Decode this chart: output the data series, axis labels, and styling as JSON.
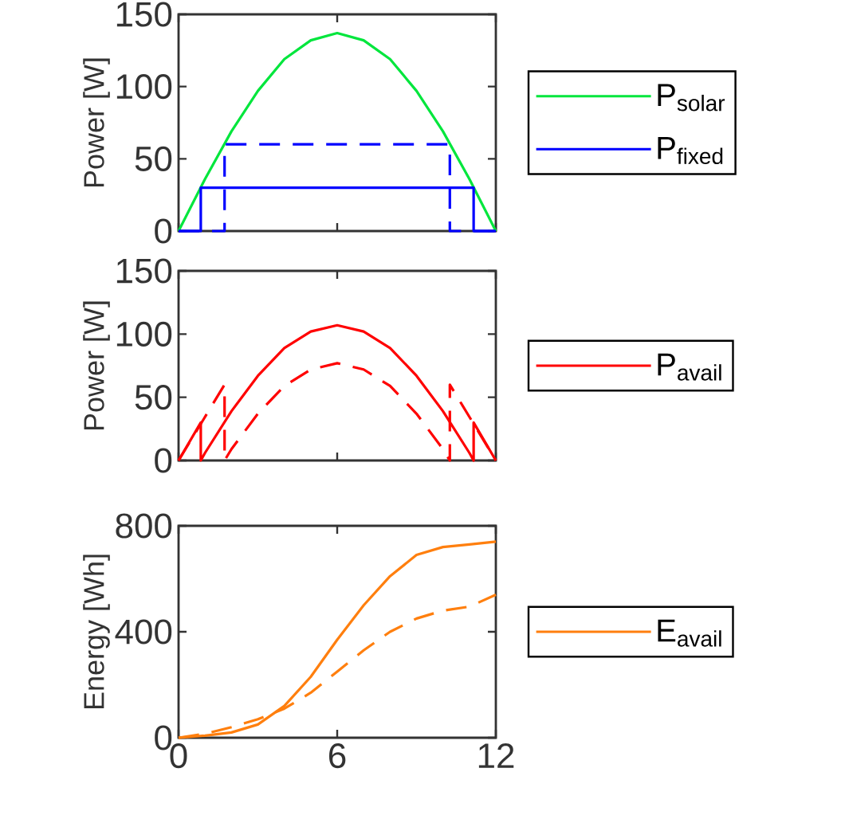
{
  "chart_data": [
    {
      "type": "line",
      "ylabel": "Power [W]",
      "xlim": [
        0,
        12
      ],
      "xticks": [
        0,
        6,
        12
      ],
      "ylim": [
        0,
        150
      ],
      "yticks": [
        0,
        50,
        100,
        150
      ],
      "tick_labels": "y",
      "legend": "right",
      "series": [
        {
          "name": "P$_{solar}$",
          "color": "#00e63c",
          "line_style": "solid",
          "x": [
            0,
            1,
            2,
            3,
            4,
            5,
            6,
            7,
            8,
            9,
            10,
            11,
            12
          ],
          "values": [
            0,
            36,
            69,
            97,
            119,
            132,
            137,
            132,
            119,
            97,
            69,
            36,
            0
          ]
        },
        {
          "name": "P$_{fixed}$",
          "color": "#0000ff",
          "line_style": "solid",
          "x": [
            0,
            0.84,
            0.84,
            11.16,
            11.16,
            12
          ],
          "values": [
            0,
            0,
            30,
            30,
            0,
            0
          ]
        },
        {
          "color": "#0000ff",
          "line_style": "dashed",
          "x": [
            0,
            1.74,
            1.74,
            10.26,
            10.26,
            12
          ],
          "values": [
            0,
            0,
            60,
            60,
            0,
            0
          ]
        }
      ]
    },
    {
      "type": "line",
      "ylabel": "Power [W]",
      "xlim": [
        0,
        12
      ],
      "xticks": [
        0,
        6,
        12
      ],
      "ylim": [
        0,
        150
      ],
      "yticks": [
        0,
        50,
        100,
        150
      ],
      "tick_labels": "y",
      "legend": "right",
      "series": [
        {
          "name": "P$_{avail}$",
          "color": "#ff0000",
          "line_style": "solid",
          "x": [
            0,
            0.84,
            0.84,
            1,
            2,
            3,
            4,
            5,
            6,
            7,
            8,
            9,
            10,
            11,
            11.16,
            11.16,
            12
          ],
          "values": [
            0,
            30,
            0,
            6,
            39,
            67,
            89,
            102,
            107,
            102,
            89,
            67,
            39,
            6,
            0,
            30,
            0
          ]
        },
        {
          "color": "#ff0000",
          "line_style": "dashed",
          "x": [
            0,
            1.74,
            1.74,
            2,
            3,
            4,
            5,
            6,
            7,
            8,
            9,
            10,
            10.26,
            10.26,
            12
          ],
          "values": [
            0,
            60,
            0,
            9,
            37,
            59,
            72,
            77,
            72,
            59,
            37,
            9,
            0,
            60,
            0
          ]
        }
      ]
    },
    {
      "type": "line",
      "ylabel": "Energy [Wh]",
      "xlim": [
        0,
        12
      ],
      "xticks": [
        0,
        6,
        12
      ],
      "ylim": [
        0,
        800
      ],
      "yticks": [
        0,
        400,
        800
      ],
      "legend": "right",
      "series": [
        {
          "name": "E$_{avail}$",
          "color": "#ff7f0e",
          "line_style": "solid",
          "x": [
            0,
            1,
            2,
            3,
            4,
            5,
            6,
            7,
            8,
            9,
            10,
            11,
            12
          ],
          "values": [
            0,
            8,
            20,
            50,
            120,
            230,
            370,
            500,
            610,
            690,
            720,
            730,
            740
          ]
        },
        {
          "color": "#ff7f0e",
          "line_style": "dashed",
          "x": [
            0,
            1,
            2,
            3,
            4,
            5,
            6,
            7,
            8,
            9,
            10,
            11,
            12
          ],
          "values": [
            0,
            15,
            40,
            70,
            110,
            170,
            250,
            330,
            400,
            450,
            480,
            495,
            540
          ]
        }
      ]
    }
  ]
}
